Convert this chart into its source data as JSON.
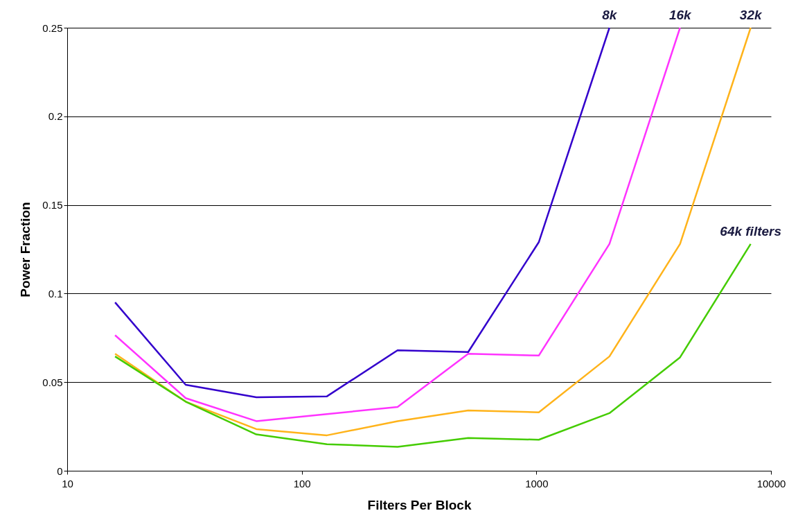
{
  "chart_data": {
    "type": "line",
    "xlabel": "Filters Per Block",
    "ylabel": "Power Fraction",
    "log": "x",
    "grid": "y",
    "marker": "none",
    "line_style": "solid",
    "legend": false,
    "xlim": [
      10,
      10000
    ],
    "xticks": [
      10,
      100,
      1000,
      10000
    ],
    "ylim": [
      0,
      0.25
    ],
    "yticks": [
      0,
      0.05,
      0.1,
      0.15,
      0.2,
      0.25
    ],
    "x": [
      16,
      32,
      64,
      128,
      256,
      512,
      1024,
      2048,
      4096,
      8192
    ],
    "series": [
      {
        "name": "8k",
        "color": "#3300cc",
        "values": [
          0.095,
          0.0485,
          0.0415,
          0.042,
          0.068,
          0.067,
          0.129,
          0.25,
          null,
          null
        ]
      },
      {
        "name": "16k",
        "color": "#ff33ff",
        "values": [
          0.0765,
          0.041,
          0.028,
          0.032,
          0.036,
          0.066,
          0.065,
          0.128,
          0.25,
          null
        ]
      },
      {
        "name": "32k",
        "color": "#ffb31a",
        "values": [
          0.066,
          0.039,
          0.0235,
          0.02,
          0.028,
          0.034,
          0.033,
          0.0645,
          0.128,
          0.25
        ]
      },
      {
        "name": "64k filters",
        "color": "#44cc00",
        "values": [
          0.0645,
          0.039,
          0.0205,
          0.015,
          0.0135,
          0.0185,
          0.0175,
          0.0325,
          0.064,
          0.128
        ]
      }
    ]
  }
}
